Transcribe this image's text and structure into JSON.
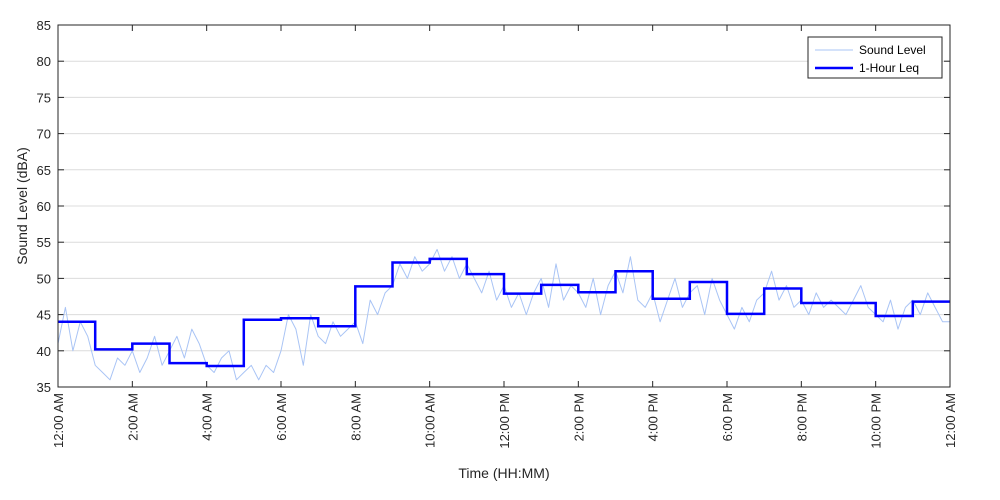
{
  "chart_data": {
    "type": "line",
    "title": "",
    "xlabel": "Time (HH:MM)",
    "ylabel": "Sound Level (dBA)",
    "ylim": [
      35,
      85
    ],
    "yticks": [
      35,
      40,
      45,
      50,
      55,
      60,
      65,
      70,
      75,
      80,
      85
    ],
    "xlim_hours": [
      0,
      24
    ],
    "xtick_hours": [
      0,
      2,
      4,
      6,
      8,
      10,
      12,
      14,
      16,
      18,
      20,
      22,
      24
    ],
    "xtick_labels": [
      "12:00 AM",
      "2:00 AM",
      "4:00 AM",
      "6:00 AM",
      "8:00 AM",
      "10:00 AM",
      "12:00 PM",
      "2:00 PM",
      "4:00 PM",
      "6:00 PM",
      "8:00 PM",
      "10:00 PM",
      "12:00 AM"
    ],
    "grid": "horizontal",
    "legend_position": "top-right",
    "series": [
      {
        "name": "Sound Level",
        "style": "thin light-blue line (approximate trace)",
        "color": "#a9c4f5",
        "x_hours": [
          0,
          0.2,
          0.4,
          0.6,
          0.8,
          1.0,
          1.2,
          1.4,
          1.6,
          1.8,
          2.0,
          2.2,
          2.4,
          2.6,
          2.8,
          3.0,
          3.2,
          3.4,
          3.6,
          3.8,
          4.0,
          4.2,
          4.4,
          4.6,
          4.8,
          5.0,
          5.2,
          5.4,
          5.6,
          5.8,
          6.0,
          6.2,
          6.4,
          6.6,
          6.8,
          7.0,
          7.2,
          7.4,
          7.6,
          7.8,
          8.0,
          8.2,
          8.4,
          8.6,
          8.8,
          9.0,
          9.2,
          9.4,
          9.6,
          9.8,
          10.0,
          10.2,
          10.4,
          10.6,
          10.8,
          11.0,
          11.2,
          11.4,
          11.6,
          11.8,
          12.0,
          12.2,
          12.4,
          12.6,
          12.8,
          13.0,
          13.2,
          13.4,
          13.6,
          13.8,
          14.0,
          14.2,
          14.4,
          14.6,
          14.8,
          15.0,
          15.2,
          15.4,
          15.6,
          15.8,
          16.0,
          16.2,
          16.4,
          16.6,
          16.8,
          17.0,
          17.2,
          17.4,
          17.6,
          17.8,
          18.0,
          18.2,
          18.4,
          18.6,
          18.8,
          19.0,
          19.2,
          19.4,
          19.6,
          19.8,
          20.0,
          20.2,
          20.4,
          20.6,
          20.8,
          21.0,
          21.2,
          21.4,
          21.6,
          21.8,
          22.0,
          22.2,
          22.4,
          22.6,
          22.8,
          23.0,
          23.2,
          23.4,
          23.6,
          23.8,
          24.0
        ],
        "values": [
          41,
          46,
          40,
          44,
          42,
          38,
          37,
          36,
          39,
          38,
          40,
          37,
          39,
          42,
          38,
          40,
          42,
          39,
          43,
          41,
          38,
          37,
          39,
          40,
          36,
          37,
          38,
          36,
          38,
          37,
          40,
          45,
          43,
          38,
          45,
          42,
          41,
          44,
          42,
          43,
          44,
          41,
          47,
          45,
          48,
          49,
          52,
          50,
          53,
          51,
          52,
          54,
          51,
          53,
          50,
          52,
          50,
          48,
          51,
          47,
          49,
          46,
          48,
          45,
          48,
          50,
          46,
          52,
          47,
          49,
          48,
          46,
          50,
          45,
          49,
          51,
          48,
          53,
          47,
          46,
          48,
          44,
          47,
          50,
          46,
          48,
          49,
          45,
          50,
          47,
          45,
          43,
          46,
          44,
          47,
          48,
          51,
          47,
          49,
          46,
          47,
          45,
          48,
          46,
          47,
          46,
          45,
          47,
          49,
          46,
          45,
          44,
          47,
          43,
          46,
          47,
          45,
          48,
          46,
          44,
          44
        ]
      },
      {
        "name": "1-Hour Leq",
        "style": "step",
        "color": "#0000ff",
        "hour_start": [
          0,
          1,
          2,
          3,
          4,
          5,
          6,
          7,
          8,
          9,
          10,
          11,
          12,
          13,
          14,
          15,
          16,
          17,
          18,
          19,
          20,
          21,
          22,
          23
        ],
        "values": [
          44.0,
          40.2,
          41.0,
          38.3,
          37.9,
          44.3,
          44.5,
          43.4,
          48.9,
          52.2,
          52.7,
          50.6,
          47.9,
          49.1,
          48.1,
          51.0,
          47.2,
          49.5,
          45.1,
          48.6,
          46.6,
          46.6,
          44.8,
          46.8
        ]
      }
    ]
  }
}
